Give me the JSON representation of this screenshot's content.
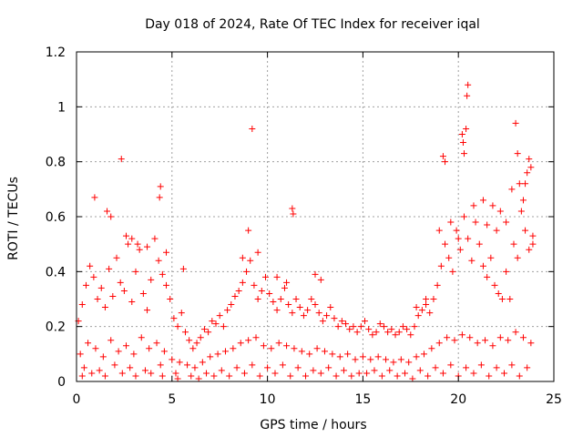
{
  "chart_data": {
    "type": "scatter",
    "title": "Day 018 of 2024, Rate Of TEC Index for receiver iqal",
    "xlabel": "GPS time / hours",
    "ylabel": "ROTI / TECUs",
    "xlim": [
      0,
      25
    ],
    "ylim": [
      0,
      1.2
    ],
    "x_ticks": [
      0,
      5,
      10,
      15,
      20,
      25
    ],
    "x_tick_labels": [
      "0",
      "5",
      "10",
      "15",
      "20",
      "25"
    ],
    "y_ticks": [
      0,
      0.2,
      0.4,
      0.6,
      0.8,
      1,
      1.2
    ],
    "y_tick_labels": [
      "0",
      "0.2",
      "0.4",
      "0.6",
      "0.8",
      "1",
      "1.2"
    ],
    "grid": true,
    "marker": "+",
    "color": "#ff0000",
    "series": [
      {
        "name": "ROTI",
        "x": [
          0.1,
          0.3,
          0.5,
          0.7,
          0.9,
          1.1,
          1.3,
          1.5,
          1.7,
          1.9,
          2.1,
          2.3,
          2.5,
          2.7,
          2.9,
          3.1,
          3.3,
          3.5,
          3.7,
          3.9,
          4.1,
          4.3,
          4.5,
          4.7,
          4.9,
          5.1,
          5.3,
          5.5,
          5.7,
          5.9,
          6.1,
          6.3,
          6.5,
          6.7,
          6.9,
          7.1,
          7.3,
          7.5,
          7.7,
          7.9,
          8.1,
          8.3,
          8.5,
          8.7,
          8.9,
          9.1,
          9.3,
          9.5,
          9.7,
          9.9,
          10.1,
          10.3,
          10.5,
          10.7,
          10.9,
          11.1,
          11.3,
          11.5,
          11.7,
          11.9,
          12.1,
          12.3,
          12.5,
          12.7,
          12.9,
          13.1,
          13.3,
          13.5,
          13.7,
          13.9,
          14.1,
          14.3,
          14.5,
          14.7,
          14.9,
          15.1,
          15.3,
          15.5,
          15.7,
          15.9,
          16.1,
          16.3,
          16.5,
          16.7,
          16.9,
          17.1,
          17.3,
          17.5,
          17.7,
          17.9,
          18.1,
          18.3,
          18.5,
          18.7,
          18.9,
          19.1,
          19.3,
          19.5,
          19.7,
          19.9,
          20.1,
          20.3,
          20.5,
          20.7,
          20.9,
          21.1,
          21.3,
          21.5,
          21.7,
          21.9,
          22.1,
          22.3,
          22.5,
          22.7,
          22.9,
          23.1,
          23.3,
          23.5,
          23.7,
          23.9,
          0.2,
          0.6,
          1.0,
          1.4,
          1.8,
          2.2,
          2.6,
          3.0,
          3.4,
          3.8,
          4.2,
          4.6,
          5.0,
          5.4,
          5.8,
          6.2,
          6.6,
          7.0,
          7.4,
          7.8,
          8.2,
          8.6,
          9.0,
          9.4,
          9.8,
          10.2,
          10.6,
          11.0,
          11.4,
          11.8,
          12.2,
          12.6,
          13.0,
          13.4,
          13.8,
          14.2,
          14.6,
          15.0,
          15.4,
          15.8,
          16.2,
          16.6,
          17.0,
          17.4,
          17.8,
          18.2,
          18.6,
          19.0,
          19.4,
          19.8,
          20.2,
          20.6,
          21.0,
          21.4,
          21.8,
          22.2,
          22.6,
          23.0,
          23.4,
          23.8,
          0.4,
          1.2,
          2.0,
          2.8,
          3.6,
          4.4,
          5.2,
          6.0,
          6.8,
          7.6,
          8.4,
          9.2,
          10.0,
          10.8,
          11.6,
          12.4,
          13.2,
          14.0,
          14.8,
          15.6,
          16.4,
          17.2,
          18.0,
          18.8,
          19.6,
          20.4,
          21.2,
          22.0,
          22.8,
          23.6,
          0.95,
          2.35,
          9.2,
          4.4,
          4.35,
          1.8,
          2.9,
          11.3,
          11.35,
          9.5,
          19.2,
          19.3,
          20.2,
          20.25,
          20.3,
          20.4,
          20.5,
          20.45,
          21.3,
          21.8,
          22.2,
          22.8,
          23.0,
          23.1,
          23.5,
          23.6,
          23.7,
          23.8,
          1.6,
          2.6,
          3.2,
          3.7,
          4.7,
          5.6,
          8.7,
          9.0,
          10.5,
          11.0,
          12.5,
          12.8,
          17.8,
          18.3,
          19.0,
          19.6,
          20.0,
          20.8,
          21.5,
          22.0,
          22.5,
          23.2,
          23.4,
          23.9,
          0.3,
          0.8,
          1.5,
          2.4,
          3.1,
          3.9,
          4.5,
          5.3,
          6.4,
          7.2,
          8.0,
          8.8,
          9.6,
          10.4,
          11.2,
          12.0,
          12.8,
          13.6,
          14.4,
          15.2,
          16.0,
          16.8,
          17.6,
          18.4,
          19.2,
          20.0,
          20.8,
          21.6,
          22.4,
          23.2
        ],
        "y": [
          0.22,
          0.28,
          0.35,
          0.42,
          0.38,
          0.3,
          0.34,
          0.27,
          0.41,
          0.31,
          0.45,
          0.36,
          0.33,
          0.5,
          0.29,
          0.4,
          0.48,
          0.32,
          0.26,
          0.37,
          0.52,
          0.44,
          0.39,
          0.35,
          0.3,
          0.23,
          0.2,
          0.25,
          0.18,
          0.15,
          0.12,
          0.14,
          0.16,
          0.19,
          0.18,
          0.22,
          0.21,
          0.24,
          0.2,
          0.26,
          0.28,
          0.31,
          0.33,
          0.36,
          0.4,
          0.44,
          0.35,
          0.3,
          0.33,
          0.38,
          0.32,
          0.29,
          0.26,
          0.3,
          0.34,
          0.28,
          0.25,
          0.3,
          0.27,
          0.24,
          0.26,
          0.3,
          0.28,
          0.25,
          0.22,
          0.24,
          0.27,
          0.23,
          0.2,
          0.22,
          0.21,
          0.19,
          0.2,
          0.18,
          0.2,
          0.22,
          0.19,
          0.17,
          0.18,
          0.21,
          0.2,
          0.18,
          0.19,
          0.17,
          0.18,
          0.2,
          0.19,
          0.17,
          0.2,
          0.24,
          0.26,
          0.28,
          0.25,
          0.3,
          0.35,
          0.42,
          0.5,
          0.45,
          0.4,
          0.55,
          0.48,
          0.6,
          0.52,
          0.44,
          0.58,
          0.5,
          0.42,
          0.38,
          0.45,
          0.35,
          0.32,
          0.3,
          0.4,
          0.3,
          0.5,
          0.45,
          0.62,
          0.55,
          0.48,
          0.5,
          0.1,
          0.14,
          0.12,
          0.09,
          0.15,
          0.11,
          0.13,
          0.1,
          0.16,
          0.12,
          0.14,
          0.11,
          0.08,
          0.07,
          0.06,
          0.05,
          0.07,
          0.09,
          0.1,
          0.11,
          0.12,
          0.14,
          0.15,
          0.16,
          0.13,
          0.12,
          0.14,
          0.13,
          0.12,
          0.11,
          0.1,
          0.12,
          0.11,
          0.1,
          0.09,
          0.1,
          0.08,
          0.09,
          0.08,
          0.09,
          0.08,
          0.07,
          0.08,
          0.07,
          0.09,
          0.1,
          0.12,
          0.14,
          0.16,
          0.15,
          0.17,
          0.16,
          0.14,
          0.15,
          0.13,
          0.16,
          0.15,
          0.18,
          0.16,
          0.14,
          0.05,
          0.04,
          0.06,
          0.05,
          0.04,
          0.06,
          0.03,
          0.02,
          0.03,
          0.04,
          0.05,
          0.06,
          0.05,
          0.06,
          0.05,
          0.04,
          0.05,
          0.04,
          0.03,
          0.04,
          0.04,
          0.03,
          0.04,
          0.05,
          0.06,
          0.05,
          0.06,
          0.05,
          0.06,
          0.05,
          0.67,
          0.81,
          0.92,
          0.71,
          0.67,
          0.6,
          0.52,
          0.63,
          0.61,
          0.47,
          0.82,
          0.8,
          0.9,
          0.87,
          0.83,
          0.92,
          1.08,
          1.04,
          0.66,
          0.64,
          0.62,
          0.7,
          0.94,
          0.83,
          0.72,
          0.76,
          0.81,
          0.78,
          0.62,
          0.53,
          0.5,
          0.49,
          0.47,
          0.41,
          0.45,
          0.55,
          0.38,
          0.36,
          0.39,
          0.37,
          0.27,
          0.3,
          0.55,
          0.58,
          0.52,
          0.64,
          0.57,
          0.55,
          0.58,
          0.72,
          0.66,
          0.53,
          0.02,
          0.03,
          0.02,
          0.03,
          0.02,
          0.03,
          0.02,
          0.01,
          0.01,
          0.02,
          0.02,
          0.03,
          0.02,
          0.03,
          0.02,
          0.02,
          0.03,
          0.02,
          0.02,
          0.03,
          0.02,
          0.02,
          0.01,
          0.02,
          0.03,
          0.02,
          0.03,
          0.02,
          0.03,
          0.02
        ]
      }
    ]
  }
}
